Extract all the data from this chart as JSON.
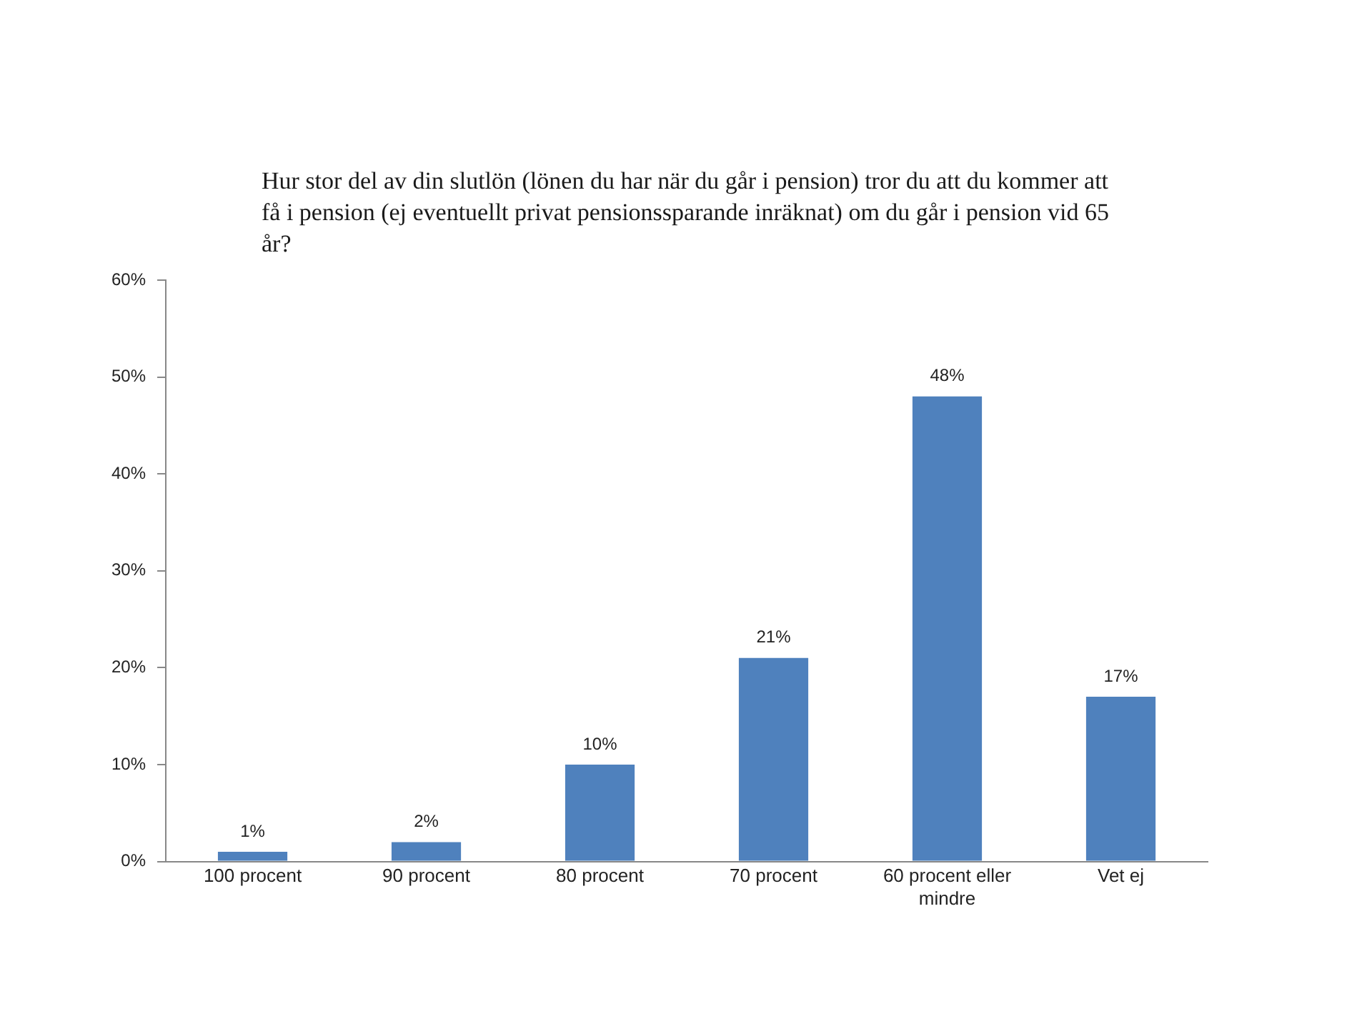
{
  "chart_data": {
    "type": "bar",
    "title": "Hur stor del av din slutlön (lönen du har när du går i pension) tror du att du kommer att få i pension (ej eventuellt privat pensionssparande inräknat) om du går i pension vid 65 år?",
    "categories": [
      "100 procent",
      "90 procent",
      "80 procent",
      "70 procent",
      "60 procent eller mindre",
      "Vet ej"
    ],
    "values": [
      1,
      2,
      10,
      21,
      48,
      17
    ],
    "value_labels": [
      "1%",
      "2%",
      "10%",
      "21%",
      "48%",
      "17%"
    ],
    "color": "#4f81bd",
    "ylim": [
      0,
      60
    ],
    "yticks": [
      {
        "value": 0,
        "label": "0%"
      },
      {
        "value": 10,
        "label": "10%"
      },
      {
        "value": 20,
        "label": "20%"
      },
      {
        "value": 30,
        "label": "30%"
      },
      {
        "value": 40,
        "label": "40%"
      },
      {
        "value": 50,
        "label": "50%"
      },
      {
        "value": 60,
        "label": "60%"
      }
    ],
    "grid": false,
    "legend": false
  }
}
